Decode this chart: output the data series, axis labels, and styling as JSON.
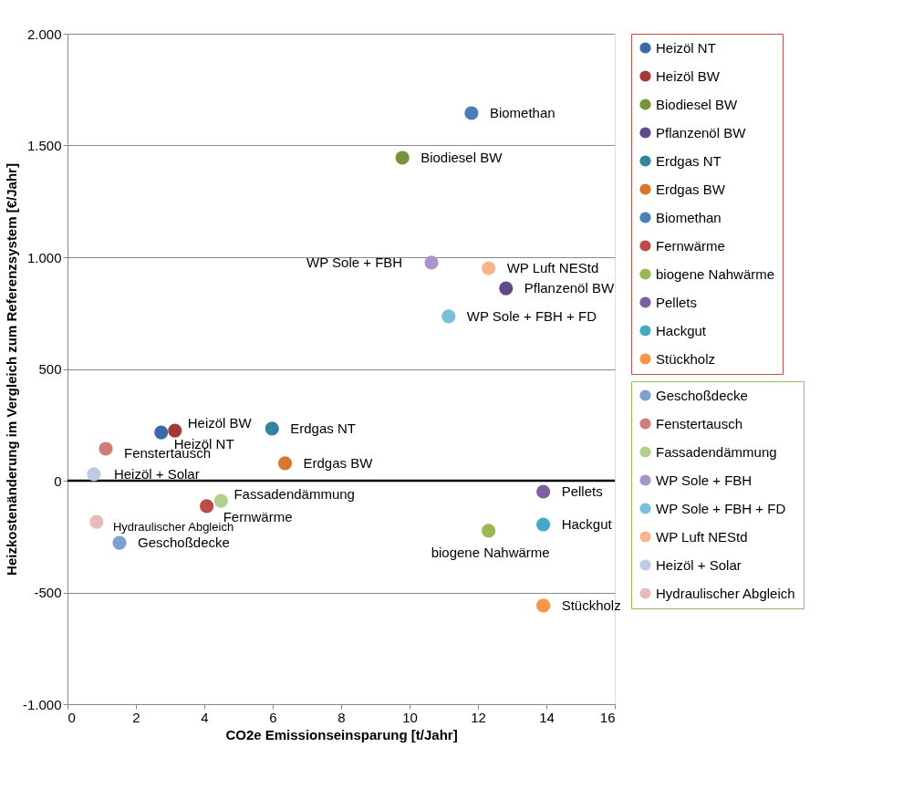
{
  "chart_data": {
    "type": "scatter",
    "xlabel": "CO2e Emissionseinsparung [t/Jahr]",
    "ylabel": "Heizkostenänderung im Vergleich zum Referenzsystem [€/Jahr]",
    "xlim": [
      0,
      16
    ],
    "xticks": [
      0,
      2,
      4,
      6,
      8,
      10,
      12,
      14,
      16
    ],
    "ylim": [
      -1000,
      2000
    ],
    "yticks": [
      {
        "value": -1000,
        "label": "-1.000"
      },
      {
        "value": -500,
        "label": "-500"
      },
      {
        "value": 0,
        "label": "0"
      },
      {
        "value": 500,
        "label": "500"
      },
      {
        "value": 1000,
        "label": "1.000"
      },
      {
        "value": 1500,
        "label": "1.500"
      },
      {
        "value": 2000,
        "label": "2.000"
      }
    ],
    "grid": "y",
    "legend": "right",
    "marker": "circle",
    "ref_lines": [
      {
        "axis": "y",
        "value": 0,
        "color": "#000000"
      }
    ],
    "series": [
      {
        "name": "Heizöl NT",
        "color": "#3b6aa8",
        "x": [
          2.74
        ],
        "values": [
          216
        ]
      },
      {
        "name": "Heizöl BW",
        "color": "#a33a38",
        "x": [
          3.14
        ],
        "values": [
          224
        ]
      },
      {
        "name": "Biodiesel BW",
        "color": "#77933c",
        "x": [
          9.79
        ],
        "values": [
          1445
        ]
      },
      {
        "name": "Pflanzenöl BW",
        "color": "#5f4a8b",
        "x": [
          12.82
        ],
        "values": [
          861
        ]
      },
      {
        "name": "Erdgas NT",
        "color": "#31859c",
        "x": [
          5.98
        ],
        "values": [
          233
        ]
      },
      {
        "name": "Erdgas BW",
        "color": "#d8762b",
        "x": [
          6.36
        ],
        "values": [
          78
        ]
      },
      {
        "name": "Biomethan",
        "color": "#4a7ebb",
        "x": [
          11.81
        ],
        "values": [
          1645
        ]
      },
      {
        "name": "Fernwärme",
        "color": "#be4b48",
        "x": [
          4.07
        ],
        "values": [
          -114
        ]
      },
      {
        "name": "biogene Nahwärme",
        "color": "#98b954",
        "x": [
          12.31
        ],
        "values": [
          -224
        ]
      },
      {
        "name": "Pellets",
        "color": "#7d60a0",
        "x": [
          13.91
        ],
        "values": [
          -49
        ]
      },
      {
        "name": "Hackgut",
        "color": "#46aac5",
        "x": [
          13.91
        ],
        "values": [
          -196
        ]
      },
      {
        "name": "Stückholz",
        "color": "#f79646",
        "x": [
          13.91
        ],
        "values": [
          -559
        ]
      },
      {
        "name": "Geschoßdecke",
        "color": "#7f9fd0",
        "x": [
          1.52
        ],
        "values": [
          -278
        ]
      },
      {
        "name": "Fenstertausch",
        "color": "#d07e7c",
        "x": [
          1.12
        ],
        "values": [
          143
        ]
      },
      {
        "name": "Fassadendämmung",
        "color": "#b3d08b",
        "x": [
          4.49
        ],
        "values": [
          -90
        ]
      },
      {
        "name": "WP Sole + FBH",
        "color": "#a995c6",
        "x": [
          10.64
        ],
        "values": [
          976
        ]
      },
      {
        "name": "WP Sole + FBH + FD",
        "color": "#77c2d8",
        "x": [
          11.14
        ],
        "values": [
          735
        ]
      },
      {
        "name": "WP Luft NEStd",
        "color": "#f9b48a",
        "x": [
          12.31
        ],
        "values": [
          951
        ]
      },
      {
        "name": "Heizöl + Solar",
        "color": "#bccce6",
        "x": [
          0.77
        ],
        "values": [
          29
        ]
      },
      {
        "name": "Hydraulischer Abgleich",
        "color": "#e3bcbb",
        "x": [
          0.85
        ],
        "values": [
          -184
        ]
      }
    ]
  }
}
